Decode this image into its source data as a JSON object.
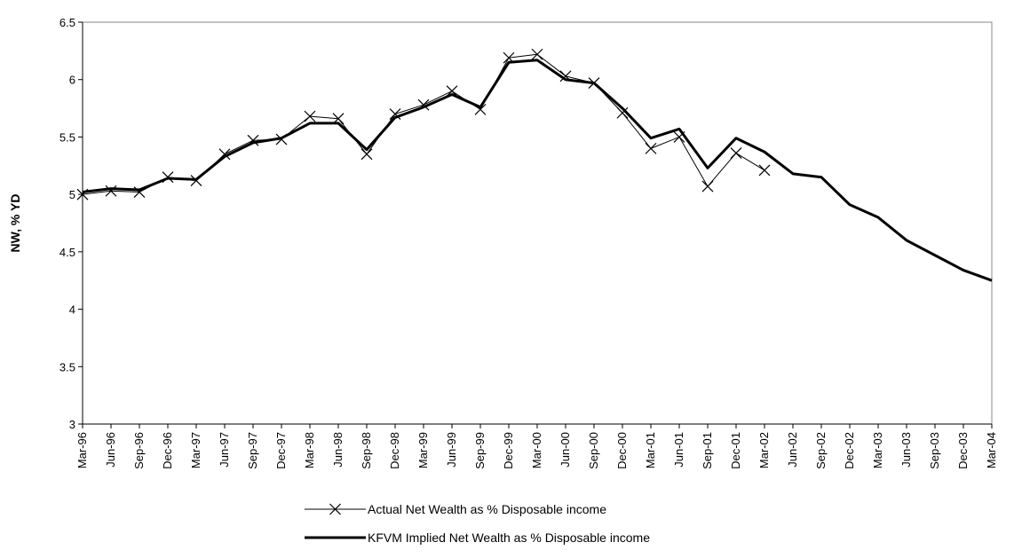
{
  "chart_data": {
    "type": "line",
    "title": "",
    "xlabel": "",
    "ylabel": "NW, % YD",
    "ylim": [
      3,
      6.5
    ],
    "yticks": [
      3,
      3.5,
      4,
      4.5,
      5,
      5.5,
      6,
      6.5
    ],
    "yticks_labels": [
      "3",
      "3.5",
      "4",
      "4.5",
      "5",
      "5.5",
      "6",
      "6.5"
    ],
    "grid": false,
    "legend_position": "bottom",
    "x": [
      "Mar-96",
      "Jun-96",
      "Sep-96",
      "Dec-96",
      "Mar-97",
      "Jun-97",
      "Sep-97",
      "Dec-97",
      "Mar-98",
      "Jun-98",
      "Sep-98",
      "Dec-98",
      "Mar-99",
      "Jun-99",
      "Sep-99",
      "Dec-99",
      "Mar-00",
      "Jun-00",
      "Sep-00",
      "Dec-00",
      "Mar-01",
      "Jun-01",
      "Sep-01",
      "Dec-01",
      "Mar-02",
      "Jun-02",
      "Sep-02",
      "Dec-02",
      "Mar-03",
      "Jun-03",
      "Sep-03",
      "Dec-03",
      "Mar-04"
    ],
    "series": [
      {
        "name": "Actual Net Wealth as % Disposable income",
        "color": "#000000",
        "marker": "x",
        "values": [
          5.0,
          5.03,
          5.02,
          5.15,
          5.12,
          5.35,
          5.47,
          5.48,
          5.68,
          5.66,
          5.35,
          5.7,
          5.78,
          5.9,
          5.74,
          6.19,
          6.22,
          6.03,
          5.97,
          5.71,
          5.4,
          5.5,
          5.07,
          5.36,
          5.21,
          null,
          null,
          null,
          null,
          null,
          null,
          null,
          null
        ]
      },
      {
        "name": "KFVM Implied Net Wealth as % Disposable income",
        "color": "#000000",
        "marker": "none",
        "values": [
          5.02,
          5.05,
          5.04,
          5.14,
          5.13,
          5.33,
          5.45,
          5.49,
          5.62,
          5.62,
          5.39,
          5.67,
          5.76,
          5.87,
          5.76,
          6.15,
          6.17,
          6.0,
          5.97,
          5.75,
          5.49,
          5.57,
          5.23,
          5.49,
          5.37,
          5.18,
          5.15,
          4.91,
          4.8,
          4.6,
          4.47,
          4.34,
          4.25
        ]
      }
    ]
  }
}
